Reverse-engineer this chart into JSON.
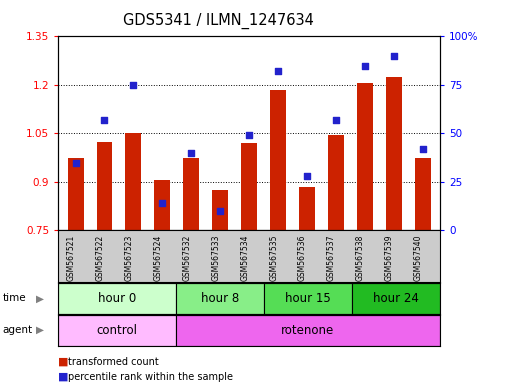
{
  "title": "GDS5341 / ILMN_1247634",
  "samples": [
    "GSM567521",
    "GSM567522",
    "GSM567523",
    "GSM567524",
    "GSM567532",
    "GSM567533",
    "GSM567534",
    "GSM567535",
    "GSM567536",
    "GSM567537",
    "GSM567538",
    "GSM567539",
    "GSM567540"
  ],
  "transformed_count": [
    0.975,
    1.025,
    1.05,
    0.905,
    0.975,
    0.875,
    1.02,
    1.185,
    0.885,
    1.045,
    1.205,
    1.225,
    0.975
  ],
  "percentile_rank": [
    35,
    57,
    75,
    14,
    40,
    10,
    49,
    82,
    28,
    57,
    85,
    90,
    42
  ],
  "ylim_left": [
    0.75,
    1.35
  ],
  "ylim_right": [
    0,
    100
  ],
  "yticks_left": [
    0.75,
    0.9,
    1.05,
    1.2,
    1.35
  ],
  "yticks_right": [
    0,
    25,
    50,
    75,
    100
  ],
  "ytick_labels_right": [
    "0",
    "25",
    "50",
    "75",
    "100%"
  ],
  "bar_color": "#cc2200",
  "dot_color": "#2222cc",
  "bar_width": 0.55,
  "time_row": [
    {
      "label": "hour 0",
      "start": 0,
      "end": 4,
      "color": "#ccffcc"
    },
    {
      "label": "hour 8",
      "start": 4,
      "end": 7,
      "color": "#88ee88"
    },
    {
      "label": "hour 15",
      "start": 7,
      "end": 10,
      "color": "#55dd55"
    },
    {
      "label": "hour 24",
      "start": 10,
      "end": 13,
      "color": "#22bb22"
    }
  ],
  "agent_row": [
    {
      "label": "control",
      "start": 0,
      "end": 4,
      "color": "#ffbbff"
    },
    {
      "label": "rotenone",
      "start": 4,
      "end": 13,
      "color": "#ee66ee"
    }
  ],
  "tick_fontsize": 7.5,
  "label_fontsize": 8.5,
  "title_fontsize": 10.5
}
